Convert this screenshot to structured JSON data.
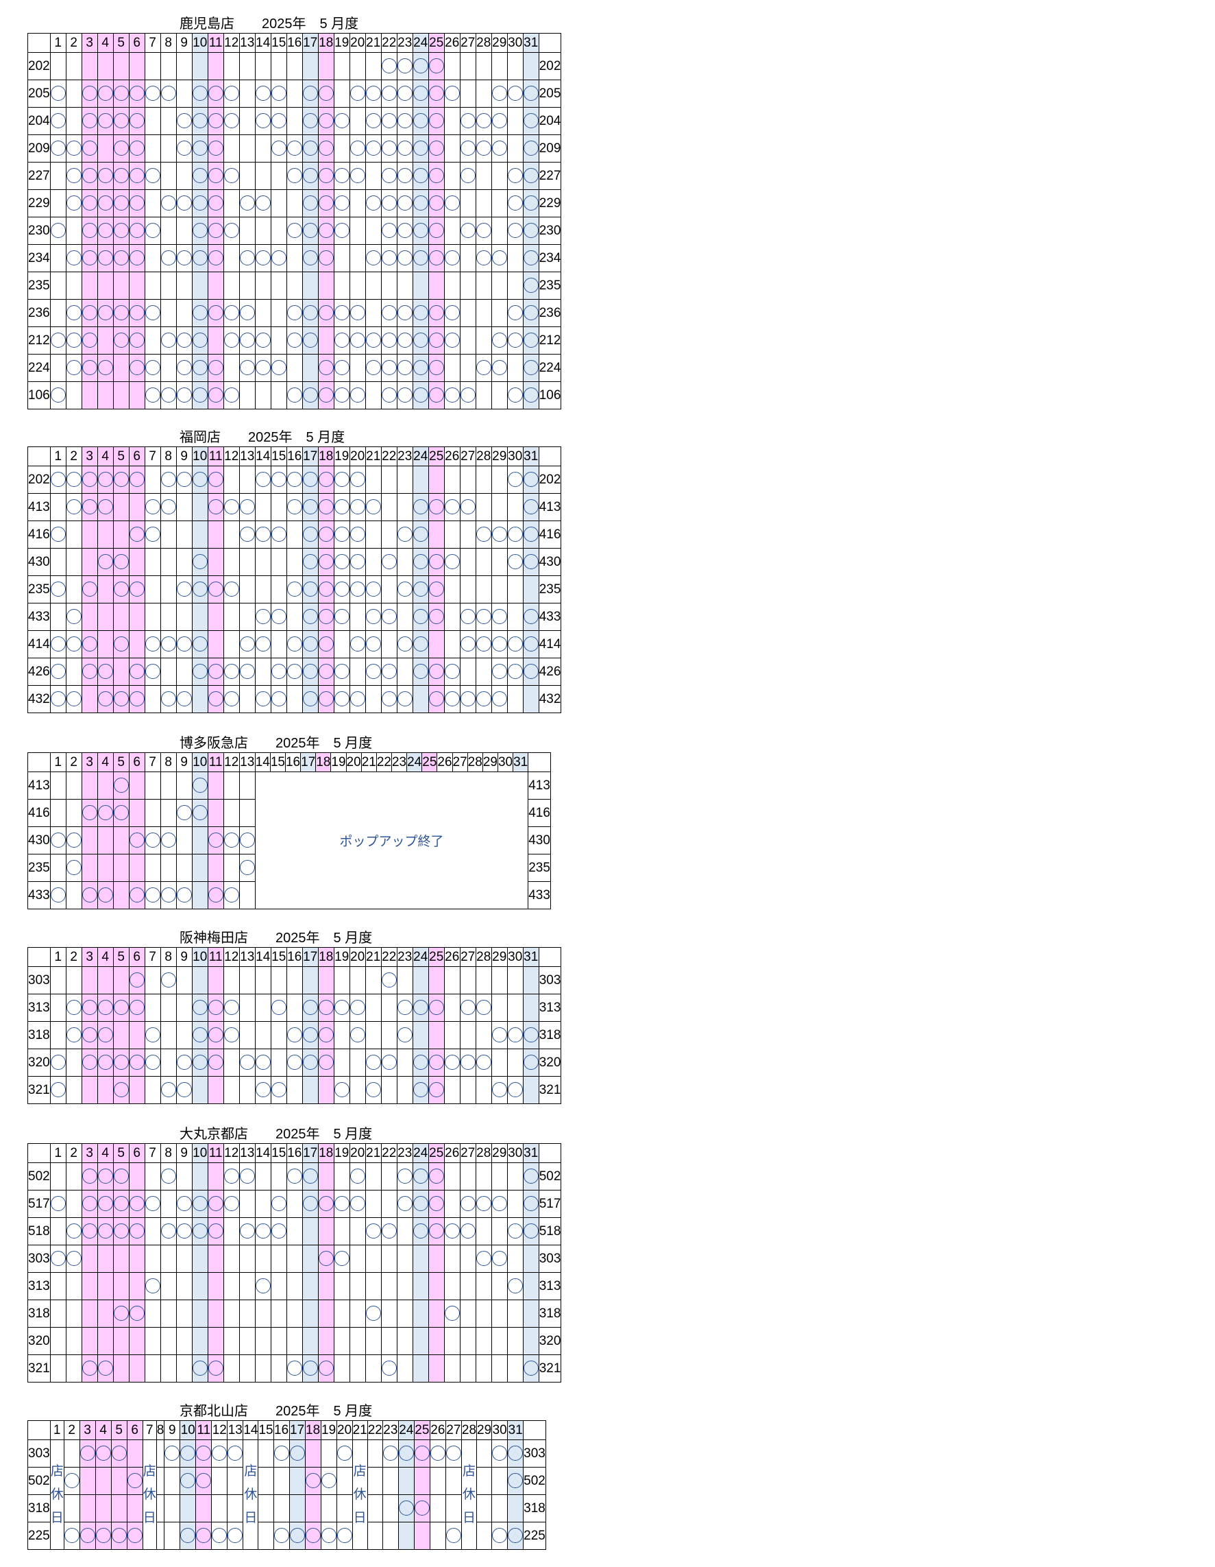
{
  "days": [
    "1",
    "2",
    "3",
    "4",
    "5",
    "6",
    "7",
    "8",
    "9",
    "10",
    "11",
    "12",
    "13",
    "14",
    "15",
    "16",
    "17",
    "18",
    "19",
    "20",
    "21",
    "22",
    "23",
    "24",
    "25",
    "26",
    "27",
    "28",
    "29",
    "30",
    "31"
  ],
  "pink_days": [
    3,
    4,
    5,
    6,
    11,
    18,
    25
  ],
  "blue_days": [
    10,
    17,
    24,
    31
  ],
  "mark_symbol": "circle",
  "stores": [
    {
      "title": "鹿児島店　　2025年　5 月度",
      "rows": [
        {
          "id": "202",
          "days": [
            22,
            23,
            24,
            25
          ]
        },
        {
          "id": "205",
          "days": [
            1,
            3,
            4,
            5,
            6,
            7,
            8,
            10,
            11,
            12,
            14,
            15,
            17,
            18,
            20,
            21,
            22,
            23,
            24,
            25,
            26,
            29,
            30,
            31
          ]
        },
        {
          "id": "204",
          "days": [
            1,
            3,
            4,
            5,
            6,
            9,
            10,
            11,
            12,
            14,
            15,
            17,
            18,
            19,
            21,
            22,
            23,
            24,
            25,
            27,
            28,
            29,
            31
          ]
        },
        {
          "id": "209",
          "days": [
            1,
            2,
            3,
            5,
            6,
            9,
            10,
            11,
            15,
            16,
            17,
            18,
            20,
            21,
            22,
            23,
            24,
            25,
            27,
            28,
            29,
            31
          ]
        },
        {
          "id": "227",
          "days": [
            2,
            3,
            4,
            5,
            6,
            7,
            10,
            11,
            12,
            16,
            17,
            18,
            19,
            20,
            22,
            23,
            24,
            25,
            27,
            30,
            31
          ]
        },
        {
          "id": "229",
          "days": [
            2,
            3,
            4,
            5,
            6,
            8,
            9,
            10,
            11,
            13,
            14,
            17,
            18,
            19,
            21,
            22,
            23,
            24,
            25,
            26,
            30,
            31
          ]
        },
        {
          "id": "230",
          "days": [
            1,
            3,
            4,
            5,
            6,
            7,
            10,
            11,
            12,
            16,
            17,
            18,
            19,
            22,
            23,
            24,
            25,
            27,
            28,
            30,
            31
          ]
        },
        {
          "id": "234",
          "days": [
            2,
            3,
            4,
            5,
            6,
            8,
            9,
            10,
            11,
            13,
            14,
            15,
            17,
            18,
            21,
            22,
            23,
            24,
            25,
            26,
            28,
            29,
            31
          ]
        },
        {
          "id": "235",
          "days": [
            31
          ]
        },
        {
          "id": "236",
          "days": [
            2,
            3,
            4,
            5,
            6,
            7,
            10,
            11,
            12,
            13,
            16,
            17,
            18,
            19,
            20,
            22,
            23,
            24,
            25,
            26,
            30,
            31
          ]
        },
        {
          "id": "212",
          "days": [
            1,
            2,
            3,
            5,
            6,
            8,
            9,
            10,
            12,
            13,
            14,
            16,
            17,
            19,
            20,
            21,
            22,
            23,
            24,
            25,
            26,
            29,
            30,
            31
          ]
        },
        {
          "id": "224",
          "days": [
            2,
            3,
            4,
            6,
            7,
            9,
            10,
            11,
            13,
            14,
            15,
            18,
            19,
            21,
            22,
            23,
            24,
            25,
            28,
            29,
            31
          ]
        },
        {
          "id": "106",
          "days": [
            1,
            7,
            8,
            9,
            10,
            11,
            12,
            16,
            17,
            18,
            19,
            20,
            22,
            23,
            24,
            25,
            26,
            27,
            30,
            31
          ]
        }
      ]
    },
    {
      "title": "福岡店　　2025年　5 月度",
      "rows": [
        {
          "id": "202",
          "days": [
            1,
            2,
            3,
            4,
            5,
            6,
            8,
            9,
            10,
            11,
            14,
            15,
            16,
            17,
            18,
            19,
            20,
            30,
            31
          ]
        },
        {
          "id": "413",
          "days": [
            2,
            3,
            4,
            7,
            8,
            11,
            12,
            13,
            16,
            17,
            18,
            19,
            20,
            21,
            24,
            25,
            26,
            27,
            31
          ]
        },
        {
          "id": "416",
          "days": [
            1,
            6,
            7,
            13,
            14,
            15,
            17,
            18,
            19,
            20,
            23,
            24,
            28,
            29,
            30,
            31
          ]
        },
        {
          "id": "430",
          "days": [
            4,
            5,
            10,
            17,
            18,
            19,
            20,
            22,
            24,
            25,
            26,
            30,
            31
          ]
        },
        {
          "id": "235",
          "days": [
            1,
            3,
            5,
            6,
            9,
            10,
            11,
            12,
            16,
            17,
            18,
            19,
            20,
            21,
            23,
            24,
            25
          ]
        },
        {
          "id": "433",
          "days": [
            2,
            14,
            15,
            17,
            18,
            19,
            21,
            22,
            24,
            25,
            27,
            28,
            29,
            31
          ]
        },
        {
          "id": "414",
          "days": [
            1,
            2,
            3,
            5,
            7,
            8,
            9,
            10,
            13,
            14,
            16,
            17,
            18,
            20,
            21,
            23,
            24,
            27,
            28,
            29,
            30,
            31
          ]
        },
        {
          "id": "426",
          "days": [
            1,
            3,
            4,
            6,
            7,
            10,
            11,
            12,
            13,
            15,
            16,
            17,
            18,
            19,
            21,
            22,
            24,
            25,
            26,
            29,
            30,
            31
          ]
        },
        {
          "id": "432",
          "days": [
            1,
            2,
            4,
            5,
            6,
            8,
            9,
            11,
            12,
            14,
            15,
            17,
            18,
            19,
            20,
            22,
            23,
            25,
            26,
            27,
            28,
            29
          ]
        }
      ]
    },
    {
      "title": "博多阪急店　　2025年　5 月度",
      "popup_end": "ポップアップ終了",
      "rows": [
        {
          "id": "413",
          "days": [
            5,
            10
          ]
        },
        {
          "id": "416",
          "days": [
            3,
            4,
            5,
            9,
            10
          ]
        },
        {
          "id": "430",
          "days": [
            1,
            2,
            6,
            7,
            8,
            11,
            12,
            13
          ]
        },
        {
          "id": "235",
          "days": [
            2,
            13
          ]
        },
        {
          "id": "433",
          "days": [
            1,
            3,
            4,
            6,
            7,
            8,
            9,
            11,
            12
          ]
        }
      ]
    },
    {
      "title": "阪神梅田店　　2025年　5 月度",
      "rows": [
        {
          "id": "303",
          "days": [
            6,
            8,
            22
          ]
        },
        {
          "id": "313",
          "days": [
            2,
            3,
            4,
            5,
            6,
            10,
            11,
            12,
            15,
            17,
            18,
            19,
            20,
            23,
            24,
            25,
            27,
            28
          ]
        },
        {
          "id": "318",
          "days": [
            2,
            3,
            4,
            7,
            10,
            11,
            12,
            16,
            17,
            18,
            20,
            23,
            29,
            30,
            31
          ]
        },
        {
          "id": "320",
          "days": [
            1,
            3,
            4,
            5,
            6,
            7,
            9,
            10,
            11,
            13,
            14,
            16,
            17,
            18,
            21,
            22,
            24,
            25,
            26,
            27,
            28,
            31
          ]
        },
        {
          "id": "321",
          "days": [
            1,
            5,
            8,
            9,
            14,
            15,
            19,
            21,
            24,
            25,
            29,
            30
          ]
        }
      ]
    },
    {
      "title": "大丸京都店　　2025年　5 月度",
      "rows": [
        {
          "id": "502",
          "days": [
            3,
            4,
            5,
            8,
            12,
            13,
            16,
            17,
            20,
            23,
            24,
            25,
            31
          ]
        },
        {
          "id": "517",
          "days": [
            1,
            3,
            4,
            5,
            6,
            7,
            9,
            10,
            11,
            12,
            15,
            17,
            18,
            19,
            20,
            23,
            24,
            25,
            27,
            28,
            29,
            31
          ]
        },
        {
          "id": "518",
          "days": [
            2,
            3,
            4,
            5,
            6,
            8,
            9,
            10,
            11,
            13,
            14,
            15,
            21,
            22,
            24,
            25,
            26,
            27,
            30,
            31
          ]
        },
        {
          "id": "303",
          "days": [
            1,
            2,
            18,
            19,
            28,
            29
          ]
        },
        {
          "id": "313",
          "days": [
            7,
            14,
            30
          ]
        },
        {
          "id": "318",
          "days": [
            5,
            6,
            21,
            26
          ]
        },
        {
          "id": "320",
          "days": []
        },
        {
          "id": "321",
          "days": [
            3,
            4,
            10,
            11,
            16,
            17,
            18,
            22,
            31
          ]
        }
      ]
    },
    {
      "title": "京都北山店　　2025年　5 月度",
      "closed_label": [
        "店",
        "休",
        "日"
      ],
      "closed_days": [
        1,
        7,
        14,
        21,
        28
      ],
      "rows": [
        {
          "id": "303",
          "days": [
            3,
            4,
            5,
            9,
            10,
            11,
            12,
            13,
            16,
            17,
            20,
            23,
            24,
            25,
            26,
            27,
            30,
            31
          ]
        },
        {
          "id": "502",
          "days": [
            2,
            6,
            10,
            11,
            18,
            19,
            31
          ]
        },
        {
          "id": "318",
          "days": [
            24,
            25
          ]
        },
        {
          "id": "225",
          "days": [
            2,
            3,
            4,
            5,
            6,
            10,
            11,
            12,
            13,
            16,
            17,
            18,
            19,
            20,
            27,
            30,
            31
          ]
        }
      ]
    }
  ]
}
